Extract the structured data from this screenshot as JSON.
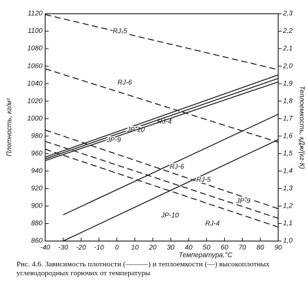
{
  "chart_data": {
    "type": "line",
    "xlabel": "Температура,°С",
    "ylabel": "Плотность, кг/м³",
    "y2label": "Теплоемкость, кДж/(кг·К)",
    "caption": "Рис. 4.6. Зависимость плотности (———) и теплоемкости (—) высокоплотных углеводородных горючих от температуры",
    "xlim": [
      -40,
      90
    ],
    "xticks": [
      -40,
      -30,
      -20,
      -10,
      0,
      10,
      20,
      30,
      40,
      50,
      60,
      70,
      80,
      90
    ],
    "ylim": [
      860,
      1120
    ],
    "yticks": [
      860,
      880,
      900,
      920,
      940,
      960,
      980,
      1000,
      1020,
      1040,
      1060,
      1080,
      1100,
      1120
    ],
    "y2lim": [
      1.0,
      2.3
    ],
    "y2ticks": [
      {
        "value": 1.0,
        "label": "1,0"
      },
      {
        "value": 1.1,
        "label": "1,1"
      },
      {
        "value": 1.2,
        "label": "1,2"
      },
      {
        "value": 1.3,
        "label": "1,3"
      },
      {
        "value": 1.4,
        "label": "1,4"
      },
      {
        "value": 1.5,
        "label": "1,5"
      },
      {
        "value": 1.6,
        "label": "1,6"
      },
      {
        "value": 1.7,
        "label": "1,7"
      },
      {
        "value": 1.8,
        "label": "1,8"
      },
      {
        "value": 1.9,
        "label": "1,9"
      },
      {
        "value": 2.0,
        "label": "2,0"
      },
      {
        "value": 2.1,
        "label": "2,1"
      },
      {
        "value": 2.2,
        "label": "2,2"
      },
      {
        "value": 2.3,
        "label": "2,3"
      }
    ],
    "grid": false,
    "series": [
      {
        "name": "RJ-5",
        "color": "#111111",
        "style": "dashed",
        "x": [
          -40,
          90
        ],
        "values": [
          1119,
          1056
        ]
      },
      {
        "name": "RJ-6",
        "color": "#111111",
        "style": "dashed",
        "x": [
          -40,
          90
        ],
        "values": [
          1057,
          973
        ]
      },
      {
        "name": "JP-9",
        "color": "#111111",
        "style": "dashed",
        "x": [
          -40,
          90
        ],
        "values": [
          987,
          897
        ]
      },
      {
        "name": "JP-10",
        "color": "#111111",
        "style": "dashed",
        "x": [
          -40,
          90
        ],
        "values": [
          974,
          886
        ]
      },
      {
        "name": "RJ-4",
        "color": "#111111",
        "style": "dashed",
        "x": [
          -40,
          90
        ],
        "values": [
          965,
          876
        ]
      },
      {
        "name": "RJ-4",
        "color": "#111111",
        "style": "solid",
        "axis": "y2",
        "x": [
          -40,
          90
        ],
        "values": [
          1.48,
          1.95
        ]
      },
      {
        "name": "JP-10",
        "color": "#111111",
        "style": "solid",
        "axis": "y2",
        "x": [
          -40,
          90
        ],
        "values": [
          1.47,
          1.93
        ]
      },
      {
        "name": "JP-9",
        "color": "#111111",
        "style": "solid",
        "axis": "y2",
        "x": [
          -40,
          90
        ],
        "values": [
          1.46,
          1.91
        ]
      },
      {
        "name": "RJ-6",
        "color": "#111111",
        "style": "solid",
        "axis": "y2",
        "x": [
          -30,
          90
        ],
        "values": [
          1.15,
          1.725
        ]
      },
      {
        "name": "RJ-5",
        "color": "#111111",
        "style": "solid",
        "axis": "y2",
        "x": [
          -30,
          90
        ],
        "values": [
          1.0,
          1.58
        ]
      }
    ]
  }
}
